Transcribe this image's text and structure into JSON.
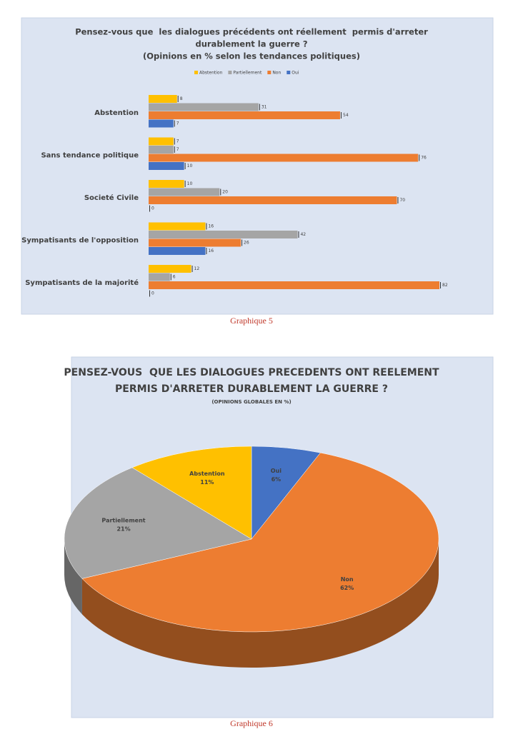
{
  "chart_data": [
    {
      "type": "bar",
      "orientation": "horizontal",
      "title": [
        "Pensez-vous que  les dialogues précédents ont réellement  permis d'arreter",
        "durablement la guerre ?"
      ],
      "subtitle": "(Opinions en % selon les tendances politiques)",
      "legend": "top",
      "categories": [
        "Abstention",
        "Sans tendance politique",
        "Societé Civile",
        "Sympatisants de l'opposition",
        "Sympatisants de la majorité"
      ],
      "series": [
        {
          "name": "Abstention",
          "color": "#ffc000",
          "values": [
            8,
            7,
            10,
            16,
            12
          ]
        },
        {
          "name": "Partiellement",
          "color": "#a5a5a5",
          "values": [
            31,
            7,
            20,
            42,
            6
          ]
        },
        {
          "name": "Non",
          "color": "#ed7d31",
          "values": [
            54,
            76,
            70,
            26,
            82
          ]
        },
        {
          "name": "Oui",
          "color": "#4472c4",
          "values": [
            7,
            10,
            0,
            16,
            0
          ]
        }
      ],
      "caption": "Graphique 5"
    },
    {
      "type": "pie",
      "title": [
        "PENSEZ-VOUS  QUE LES DIALOGUES PRECEDENTS ONT REELEMENT",
        "PERMIS D'ARRETER DURABLEMENT LA GUERRE ?"
      ],
      "subtitle": "(OPINIONS GLOBALES EN %)",
      "categories": [
        "Oui",
        "Non",
        "Partiellement",
        "Abstention"
      ],
      "values": [
        6,
        62,
        21,
        11
      ],
      "value_labels": [
        "6%",
        "62%",
        "21%",
        "11%"
      ],
      "colors": [
        "#4472c4",
        "#ed7d31",
        "#a5a5a5",
        "#ffc000"
      ],
      "caption": "Graphique 6"
    }
  ]
}
